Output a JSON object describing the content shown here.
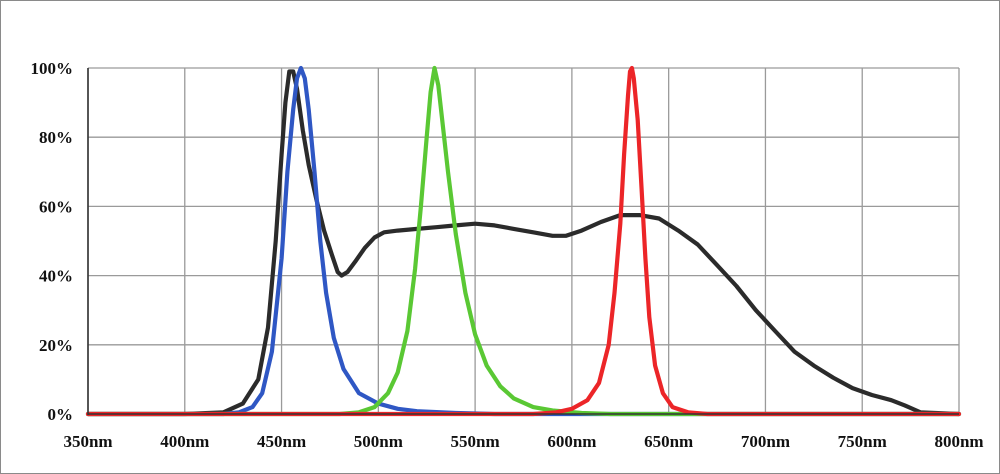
{
  "chart_data": {
    "type": "line",
    "title": "",
    "xlabel": "",
    "ylabel": "",
    "xlim": [
      350,
      800
    ],
    "ylim": [
      0,
      100
    ],
    "x_ticks": [
      350,
      400,
      450,
      500,
      550,
      600,
      650,
      700,
      750,
      800
    ],
    "x_tick_labels": [
      "350nm",
      "400nm",
      "450nm",
      "500nm",
      "550nm",
      "600nm",
      "650nm",
      "700nm",
      "750nm",
      "800nm"
    ],
    "y_ticks": [
      0,
      20,
      40,
      60,
      80,
      100
    ],
    "y_tick_labels": [
      "0%",
      "20%",
      "40%",
      "60%",
      "80%",
      "100%"
    ],
    "grid": true,
    "legend": "none",
    "series": [
      {
        "color": "#2b2b2b",
        "points": [
          [
            350,
            0
          ],
          [
            400,
            0
          ],
          [
            420,
            0.5
          ],
          [
            430,
            3
          ],
          [
            438,
            10
          ],
          [
            443,
            25
          ],
          [
            447,
            50
          ],
          [
            450,
            75
          ],
          [
            452,
            90
          ],
          [
            454,
            99
          ],
          [
            456,
            99
          ],
          [
            458,
            94
          ],
          [
            461,
            82
          ],
          [
            464,
            72
          ],
          [
            468,
            62
          ],
          [
            472,
            53
          ],
          [
            476,
            46
          ],
          [
            479,
            41
          ],
          [
            481,
            40
          ],
          [
            484,
            41
          ],
          [
            488,
            44
          ],
          [
            493,
            48
          ],
          [
            498,
            51
          ],
          [
            503,
            52.5
          ],
          [
            510,
            53
          ],
          [
            520,
            53.5
          ],
          [
            530,
            54
          ],
          [
            540,
            54.5
          ],
          [
            550,
            55
          ],
          [
            560,
            54.5
          ],
          [
            570,
            53.5
          ],
          [
            580,
            52.5
          ],
          [
            590,
            51.5
          ],
          [
            597,
            51.5
          ],
          [
            605,
            53
          ],
          [
            615,
            55.5
          ],
          [
            625,
            57.5
          ],
          [
            635,
            57.5
          ],
          [
            645,
            56.5
          ],
          [
            655,
            53
          ],
          [
            665,
            49
          ],
          [
            675,
            43
          ],
          [
            685,
            37
          ],
          [
            695,
            30
          ],
          [
            705,
            24
          ],
          [
            715,
            18
          ],
          [
            725,
            14
          ],
          [
            735,
            10.5
          ],
          [
            745,
            7.5
          ],
          [
            755,
            5.5
          ],
          [
            765,
            4
          ],
          [
            772,
            2.5
          ],
          [
            778,
            1
          ],
          [
            780,
            0.5
          ],
          [
            800,
            0
          ]
        ]
      },
      {
        "color": "#2f57c4",
        "points": [
          [
            350,
            0
          ],
          [
            420,
            0
          ],
          [
            428,
            0.5
          ],
          [
            435,
            2
          ],
          [
            440,
            6
          ],
          [
            445,
            18
          ],
          [
            450,
            45
          ],
          [
            453,
            70
          ],
          [
            456,
            88
          ],
          [
            458,
            97
          ],
          [
            460,
            100
          ],
          [
            462,
            97
          ],
          [
            464,
            88
          ],
          [
            467,
            70
          ],
          [
            470,
            50
          ],
          [
            473,
            35
          ],
          [
            477,
            22
          ],
          [
            482,
            13
          ],
          [
            490,
            6
          ],
          [
            500,
            3
          ],
          [
            510,
            1.5
          ],
          [
            520,
            0.8
          ],
          [
            540,
            0.3
          ],
          [
            560,
            0
          ],
          [
            800,
            0
          ]
        ]
      },
      {
        "color": "#5ac834",
        "points": [
          [
            350,
            0
          ],
          [
            480,
            0
          ],
          [
            490,
            0.5
          ],
          [
            498,
            2
          ],
          [
            505,
            6
          ],
          [
            510,
            12
          ],
          [
            515,
            24
          ],
          [
            519,
            42
          ],
          [
            522,
            60
          ],
          [
            525,
            80
          ],
          [
            527,
            93
          ],
          [
            529,
            100
          ],
          [
            531,
            95
          ],
          [
            533,
            85
          ],
          [
            536,
            70
          ],
          [
            540,
            52
          ],
          [
            545,
            35
          ],
          [
            550,
            23
          ],
          [
            556,
            14
          ],
          [
            563,
            8
          ],
          [
            570,
            4.5
          ],
          [
            580,
            2
          ],
          [
            590,
            1
          ],
          [
            605,
            0.3
          ],
          [
            620,
            0
          ],
          [
            800,
            0
          ]
        ]
      },
      {
        "color": "#ec2528",
        "points": [
          [
            350,
            0
          ],
          [
            580,
            0
          ],
          [
            592,
            0.5
          ],
          [
            600,
            1.5
          ],
          [
            608,
            4
          ],
          [
            614,
            9
          ],
          [
            619,
            20
          ],
          [
            622,
            35
          ],
          [
            625,
            55
          ],
          [
            627,
            75
          ],
          [
            629,
            92
          ],
          [
            630,
            99
          ],
          [
            631,
            100
          ],
          [
            632,
            97
          ],
          [
            634,
            85
          ],
          [
            636,
            65
          ],
          [
            638,
            45
          ],
          [
            640,
            28
          ],
          [
            643,
            14
          ],
          [
            647,
            6
          ],
          [
            652,
            2
          ],
          [
            660,
            0.5
          ],
          [
            670,
            0
          ],
          [
            800,
            0
          ]
        ]
      }
    ]
  }
}
